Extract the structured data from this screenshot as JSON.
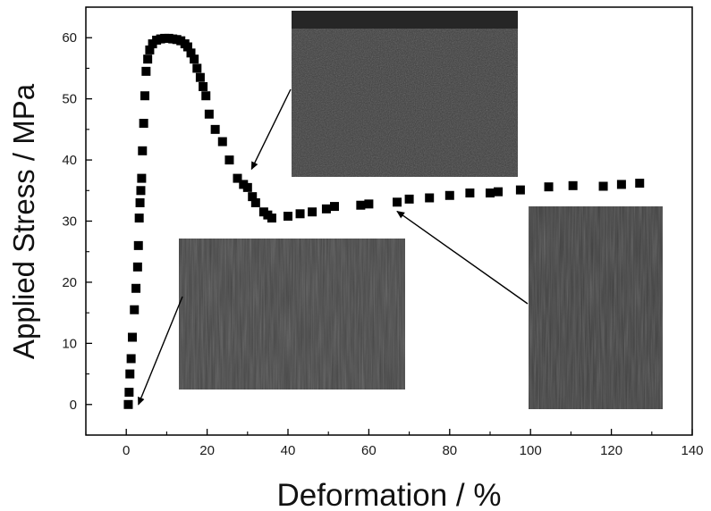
{
  "chart_data": {
    "type": "scatter",
    "title": "",
    "xlabel": "Deformation / %",
    "ylabel": "Applied Stress / MPa",
    "xlim": [
      -10,
      140
    ],
    "ylim": [
      -5,
      65
    ],
    "x_ticks": [
      "0",
      "20",
      "40",
      "60",
      "80",
      "100",
      "120",
      "140"
    ],
    "y_ticks": [
      "0",
      "10",
      "20",
      "30",
      "40",
      "50",
      "60"
    ],
    "grid": false,
    "legend": "none",
    "marker": "square",
    "marker_color": "#000000",
    "series": [
      {
        "x": [
          0.5,
          0.7,
          0.9,
          1.2,
          1.5,
          2.0,
          2.4,
          2.8,
          3.0,
          3.2,
          3.4,
          3.6,
          3.8,
          4.0,
          4.3,
          4.6,
          4.9,
          5.3,
          5.8,
          6.5,
          7.5,
          8.5,
          9.5,
          10.5,
          11.5,
          12.5,
          13.5,
          14.5,
          15.2,
          16.0,
          16.8,
          17.5,
          18.3,
          19.0,
          19.7,
          20.5,
          22.0,
          23.8,
          25.5,
          27.5,
          29.0,
          30.0,
          31.2,
          32.0,
          34.0,
          35.0,
          36.0,
          40.0,
          43.0,
          46.0,
          49.5,
          51.5,
          58.0,
          60.0,
          67.0,
          70.0,
          75.0,
          80.0,
          85.0,
          90.0,
          92.0,
          97.5,
          104.5,
          110.5,
          118.0,
          122.5,
          127.0
        ],
        "y": [
          0,
          2,
          5,
          7.5,
          11,
          15.5,
          19,
          22.5,
          26,
          30.5,
          33,
          35,
          37,
          41.5,
          46,
          50.5,
          54.5,
          56.5,
          58,
          59,
          59.6,
          59.8,
          59.9,
          59.9,
          59.8,
          59.7,
          59.5,
          59,
          58.5,
          57.5,
          56.5,
          55,
          53.5,
          52,
          50.5,
          47.5,
          45,
          43,
          40,
          37,
          36,
          35.5,
          34,
          33,
          31.5,
          31,
          30.5,
          30.8,
          31.2,
          31.5,
          32,
          32.4,
          32.6,
          32.8,
          33.1,
          33.6,
          33.8,
          34.2,
          34.6,
          34.6,
          34.8,
          35.1,
          35.6,
          35.8,
          35.7,
          36,
          36.2
        ]
      }
    ]
  },
  "insets": [
    {
      "name": "sem-inset-upper",
      "color": "#3c3c3c",
      "top_strip": "#262626",
      "arrow_to": {
        "x": 31,
        "y": 38.5
      }
    },
    {
      "name": "sem-inset-lower-left",
      "color": "#454545",
      "arrow_to": {
        "x": 3,
        "y": 0
      }
    },
    {
      "name": "sem-inset-right",
      "color": "#3f3f3f",
      "arrow_to": {
        "x": 67,
        "y": 31.6
      }
    }
  ]
}
